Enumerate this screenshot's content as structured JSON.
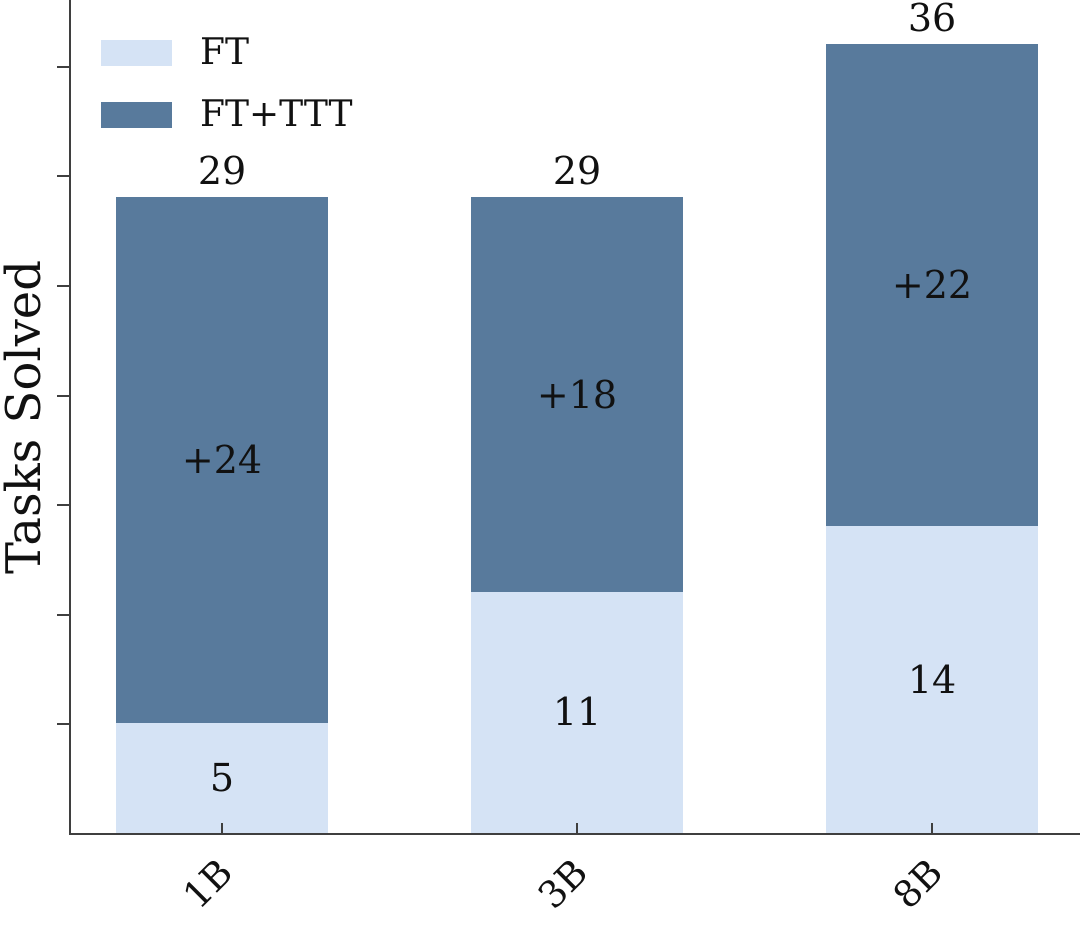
{
  "figure": {
    "background": "#ffffff",
    "axis_color": "#3f3f3f",
    "text_color": "#111111"
  },
  "chart_data": {
    "type": "bar",
    "stacked": true,
    "title": "",
    "xlabel": "",
    "ylabel": "Tasks Solved",
    "categories": [
      "1B",
      "3B",
      "8B"
    ],
    "series": [
      {
        "name": "FT",
        "color": "#d5e3f5",
        "values": [
          5,
          11,
          14
        ],
        "labels": [
          "5",
          "11",
          "14"
        ]
      },
      {
        "name": "FT+TTT",
        "color": "#587a9c",
        "values": [
          24,
          18,
          22
        ],
        "labels": [
          "+24",
          "+18",
          "+22"
        ]
      }
    ],
    "totals": [
      29,
      29,
      36
    ],
    "total_labels": [
      "29",
      "29",
      "36"
    ],
    "ylim": [
      0,
      38
    ],
    "ytick_step": 5,
    "yticks_labeled": false,
    "grid": false,
    "legend_position": "upper-left"
  }
}
